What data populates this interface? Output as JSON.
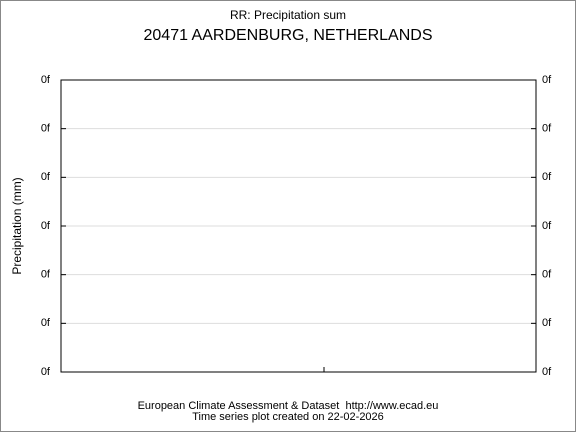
{
  "header": {
    "title": "RR: Precipitation sum",
    "subtitle": "20471 AARDENBURG, NETHERLANDS"
  },
  "plot": {
    "y_label": "Precipitation (mm)",
    "left_tick_labels": [
      "0f",
      "0f",
      "0f",
      "0f",
      "0f",
      "0f",
      "0f"
    ],
    "right_tick_labels": [
      "0f",
      "0f",
      "0f",
      "0f",
      "0f",
      "0f",
      "0f"
    ]
  },
  "footer": {
    "source": "European Climate Assessment & Dataset  http://www.ecad.eu",
    "created": "Time series plot created on 22-02-2026"
  }
}
